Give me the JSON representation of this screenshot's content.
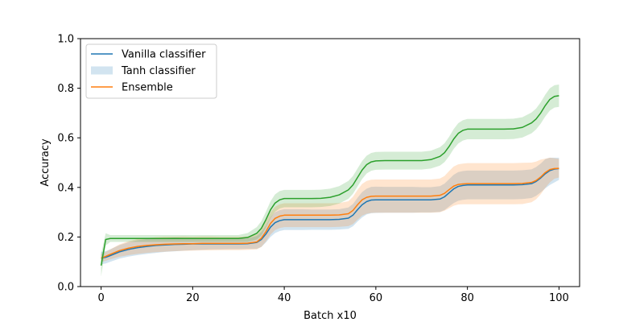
{
  "chart_data": {
    "type": "line",
    "title": "",
    "xlabel": "Batch x10",
    "ylabel": "Accuracy",
    "xlim": [
      -4.5,
      104.5
    ],
    "ylim": [
      0.0,
      1.0
    ],
    "xticks": [
      0,
      20,
      40,
      60,
      80,
      100
    ],
    "xtick_labels": [
      "0",
      "20",
      "40",
      "60",
      "80",
      "100"
    ],
    "yticks": [
      0.0,
      0.2,
      0.4,
      0.6,
      0.8,
      1.0
    ],
    "ytick_labels": [
      "0.0",
      "0.2",
      "0.4",
      "0.6",
      "0.8",
      "1.0"
    ],
    "grid": false,
    "legend": {
      "location": "top-left",
      "entries": [
        {
          "label": "Vanilla classifier",
          "style": "line",
          "color": "#1f77b4"
        },
        {
          "label": "Tanh classifier",
          "style": "band",
          "color": "#1f77b4"
        },
        {
          "label": "Ensemble",
          "style": "line",
          "color": "#ff7f0e"
        }
      ]
    },
    "x": [
      0,
      1,
      2,
      4,
      6,
      8,
      10,
      12,
      14,
      16,
      18,
      20,
      22,
      24,
      26,
      28,
      30,
      32,
      34,
      35,
      36,
      37,
      38,
      39,
      40,
      42,
      44,
      46,
      48,
      50,
      52,
      54,
      55,
      56,
      57,
      58,
      59,
      60,
      62,
      64,
      66,
      68,
      70,
      72,
      74,
      75,
      76,
      77,
      78,
      79,
      80,
      82,
      84,
      86,
      88,
      90,
      92,
      94,
      95,
      96,
      97,
      98,
      99,
      100
    ],
    "series": [
      {
        "color": "#1f77b4",
        "values": [
          0.115,
          0.118,
          0.125,
          0.14,
          0.15,
          0.157,
          0.162,
          0.166,
          0.168,
          0.17,
          0.171,
          0.172,
          0.172,
          0.172,
          0.172,
          0.172,
          0.172,
          0.173,
          0.178,
          0.19,
          0.212,
          0.24,
          0.258,
          0.266,
          0.27,
          0.27,
          0.27,
          0.27,
          0.27,
          0.27,
          0.271,
          0.276,
          0.288,
          0.31,
          0.33,
          0.343,
          0.349,
          0.35,
          0.35,
          0.35,
          0.35,
          0.35,
          0.35,
          0.35,
          0.353,
          0.362,
          0.378,
          0.394,
          0.404,
          0.408,
          0.41,
          0.41,
          0.41,
          0.41,
          0.41,
          0.41,
          0.411,
          0.415,
          0.424,
          0.438,
          0.455,
          0.468,
          0.474,
          0.476
        ],
        "band_lower": [
          0.09,
          0.093,
          0.1,
          0.113,
          0.121,
          0.127,
          0.132,
          0.136,
          0.14,
          0.142,
          0.145,
          0.147,
          0.148,
          0.15,
          0.15,
          0.151,
          0.151,
          0.152,
          0.152,
          0.16,
          0.178,
          0.2,
          0.216,
          0.224,
          0.228,
          0.228,
          0.228,
          0.229,
          0.229,
          0.229,
          0.23,
          0.233,
          0.243,
          0.262,
          0.279,
          0.291,
          0.296,
          0.297,
          0.298,
          0.298,
          0.298,
          0.298,
          0.299,
          0.299,
          0.301,
          0.309,
          0.323,
          0.337,
          0.346,
          0.35,
          0.352,
          0.352,
          0.352,
          0.352,
          0.352,
          0.352,
          0.353,
          0.357,
          0.366,
          0.38,
          0.396,
          0.41,
          0.42,
          0.43
        ],
        "band_upper": [
          0.14,
          0.143,
          0.15,
          0.167,
          0.179,
          0.187,
          0.192,
          0.196,
          0.196,
          0.198,
          0.197,
          0.197,
          0.196,
          0.194,
          0.194,
          0.193,
          0.193,
          0.194,
          0.204,
          0.22,
          0.246,
          0.28,
          0.3,
          0.308,
          0.312,
          0.312,
          0.312,
          0.311,
          0.311,
          0.311,
          0.312,
          0.319,
          0.333,
          0.358,
          0.381,
          0.395,
          0.402,
          0.403,
          0.402,
          0.402,
          0.402,
          0.402,
          0.401,
          0.401,
          0.405,
          0.415,
          0.433,
          0.451,
          0.462,
          0.466,
          0.468,
          0.468,
          0.468,
          0.468,
          0.468,
          0.468,
          0.469,
          0.473,
          0.482,
          0.496,
          0.514,
          0.52,
          0.52,
          0.52
        ]
      },
      {
        "color": "#ff7f0e",
        "values": [
          0.115,
          0.122,
          0.13,
          0.145,
          0.155,
          0.162,
          0.166,
          0.169,
          0.171,
          0.172,
          0.173,
          0.173,
          0.174,
          0.174,
          0.174,
          0.174,
          0.174,
          0.175,
          0.18,
          0.195,
          0.222,
          0.255,
          0.275,
          0.284,
          0.288,
          0.288,
          0.288,
          0.288,
          0.288,
          0.288,
          0.289,
          0.294,
          0.307,
          0.33,
          0.35,
          0.36,
          0.364,
          0.365,
          0.365,
          0.365,
          0.365,
          0.365,
          0.365,
          0.365,
          0.368,
          0.376,
          0.391,
          0.405,
          0.412,
          0.414,
          0.415,
          0.415,
          0.415,
          0.415,
          0.415,
          0.415,
          0.416,
          0.42,
          0.428,
          0.442,
          0.46,
          0.472,
          0.476,
          0.477
        ],
        "band_lower": [
          0.1,
          0.104,
          0.11,
          0.12,
          0.127,
          0.132,
          0.136,
          0.139,
          0.141,
          0.143,
          0.144,
          0.145,
          0.146,
          0.146,
          0.147,
          0.147,
          0.147,
          0.148,
          0.15,
          0.16,
          0.182,
          0.21,
          0.228,
          0.236,
          0.24,
          0.24,
          0.24,
          0.24,
          0.24,
          0.24,
          0.241,
          0.244,
          0.252,
          0.27,
          0.286,
          0.294,
          0.297,
          0.298,
          0.298,
          0.298,
          0.298,
          0.298,
          0.298,
          0.298,
          0.3,
          0.306,
          0.316,
          0.326,
          0.331,
          0.332,
          0.332,
          0.332,
          0.332,
          0.332,
          0.332,
          0.332,
          0.333,
          0.34,
          0.352,
          0.372,
          0.398,
          0.42,
          0.435,
          0.44
        ],
        "band_upper": [
          0.13,
          0.14,
          0.15,
          0.17,
          0.183,
          0.192,
          0.196,
          0.199,
          0.201,
          0.201,
          0.202,
          0.201,
          0.202,
          0.202,
          0.201,
          0.201,
          0.201,
          0.202,
          0.21,
          0.23,
          0.262,
          0.3,
          0.322,
          0.332,
          0.336,
          0.336,
          0.336,
          0.336,
          0.336,
          0.336,
          0.337,
          0.344,
          0.362,
          0.39,
          0.414,
          0.426,
          0.431,
          0.432,
          0.432,
          0.432,
          0.432,
          0.432,
          0.432,
          0.432,
          0.436,
          0.446,
          0.466,
          0.484,
          0.493,
          0.496,
          0.498,
          0.498,
          0.498,
          0.498,
          0.498,
          0.498,
          0.499,
          0.5,
          0.504,
          0.512,
          0.516,
          0.52,
          0.518,
          0.515
        ]
      },
      {
        "color": "#2ca02c",
        "values": [
          0.085,
          0.19,
          0.194,
          0.194,
          0.194,
          0.194,
          0.194,
          0.194,
          0.194,
          0.194,
          0.194,
          0.194,
          0.194,
          0.194,
          0.194,
          0.194,
          0.194,
          0.198,
          0.215,
          0.235,
          0.27,
          0.31,
          0.337,
          0.35,
          0.355,
          0.355,
          0.355,
          0.355,
          0.356,
          0.36,
          0.37,
          0.39,
          0.41,
          0.44,
          0.47,
          0.492,
          0.503,
          0.507,
          0.508,
          0.508,
          0.508,
          0.508,
          0.508,
          0.512,
          0.525,
          0.54,
          0.565,
          0.595,
          0.618,
          0.63,
          0.635,
          0.635,
          0.635,
          0.635,
          0.635,
          0.636,
          0.642,
          0.66,
          0.676,
          0.7,
          0.73,
          0.755,
          0.767,
          0.77
        ],
        "band_lower": [
          0.04,
          0.165,
          0.18,
          0.18,
          0.18,
          0.18,
          0.18,
          0.18,
          0.18,
          0.18,
          0.18,
          0.18,
          0.18,
          0.18,
          0.18,
          0.18,
          0.18,
          0.18,
          0.19,
          0.206,
          0.238,
          0.276,
          0.302,
          0.315,
          0.32,
          0.32,
          0.32,
          0.32,
          0.321,
          0.325,
          0.335,
          0.354,
          0.374,
          0.404,
          0.434,
          0.456,
          0.467,
          0.471,
          0.472,
          0.472,
          0.472,
          0.472,
          0.472,
          0.476,
          0.488,
          0.502,
          0.526,
          0.555,
          0.577,
          0.589,
          0.594,
          0.594,
          0.594,
          0.594,
          0.594,
          0.595,
          0.601,
          0.618,
          0.634,
          0.657,
          0.686,
          0.71,
          0.722,
          0.725
        ],
        "band_upper": [
          0.13,
          0.215,
          0.208,
          0.208,
          0.208,
          0.208,
          0.208,
          0.208,
          0.208,
          0.208,
          0.208,
          0.208,
          0.208,
          0.208,
          0.208,
          0.208,
          0.208,
          0.216,
          0.24,
          0.264,
          0.302,
          0.344,
          0.372,
          0.385,
          0.39,
          0.39,
          0.39,
          0.39,
          0.391,
          0.395,
          0.405,
          0.426,
          0.446,
          0.476,
          0.506,
          0.528,
          0.539,
          0.543,
          0.544,
          0.544,
          0.544,
          0.544,
          0.544,
          0.548,
          0.562,
          0.578,
          0.604,
          0.635,
          0.659,
          0.671,
          0.676,
          0.676,
          0.676,
          0.676,
          0.676,
          0.677,
          0.683,
          0.702,
          0.718,
          0.743,
          0.774,
          0.8,
          0.812,
          0.815
        ]
      }
    ]
  }
}
